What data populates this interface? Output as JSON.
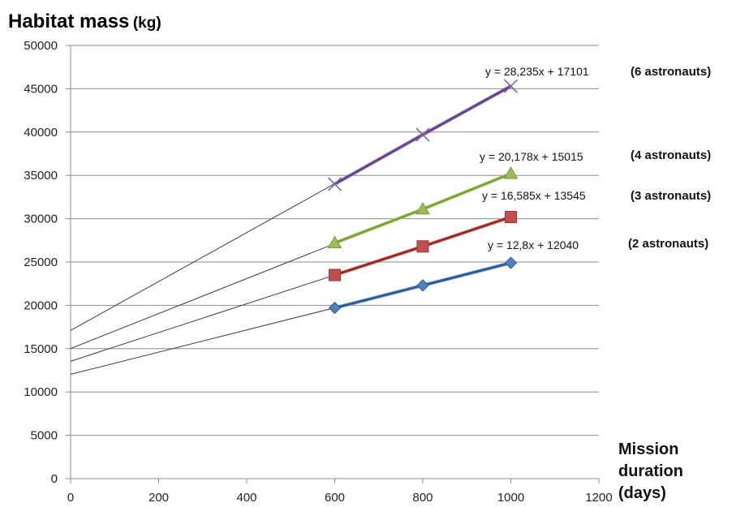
{
  "chart_data": {
    "type": "scatter",
    "title": "",
    "ylabel_main": "Habitat mass",
    "ylabel_unit": "(kg)",
    "xlabel_lines": [
      "Mission",
      "duration",
      "(days)"
    ],
    "xlim": [
      0,
      1200
    ],
    "ylim": [
      0,
      50000
    ],
    "x_ticks": [
      "0",
      "200",
      "400",
      "600",
      "800",
      "1000",
      "1200"
    ],
    "y_ticks": [
      "0",
      "5000",
      "10000",
      "15000",
      "20000",
      "25000",
      "30000",
      "35000",
      "40000",
      "45000",
      "50000"
    ],
    "grid": "horizontal",
    "series": [
      {
        "name": "(6 astronauts)",
        "x": [
          600,
          800,
          1000
        ],
        "values": [
          34000,
          39700,
          45300
        ],
        "marker": "x",
        "color": "#8064a2",
        "line_color": "#5b3a82",
        "trendline": {
          "slope": 28.235,
          "intercept": 17101,
          "equation": "y = 28,235x + 17101"
        }
      },
      {
        "name": "(4 astronauts)",
        "x": [
          600,
          800,
          1000
        ],
        "values": [
          27200,
          31100,
          35200
        ],
        "marker": "triangle",
        "color": "#9bbb59",
        "line_color": "#6f9a2a",
        "trendline": {
          "slope": 20.178,
          "intercept": 15015,
          "equation": "y = 20,178x + 15015"
        }
      },
      {
        "name": "(3 astronauts)",
        "x": [
          600,
          800,
          1000
        ],
        "values": [
          23500,
          26800,
          30200
        ],
        "marker": "square",
        "color": "#c0504d",
        "line_color": "#8b1a1a",
        "trendline": {
          "slope": 16.585,
          "intercept": 13545,
          "equation": "y = 16,585x + 13545"
        }
      },
      {
        "name": "(2 astronauts)",
        "x": [
          600,
          800,
          1000
        ],
        "values": [
          19700,
          22300,
          24900
        ],
        "marker": "diamond",
        "color": "#4f81bd",
        "line_color": "#1f4e8c",
        "trendline": {
          "slope": 12.8,
          "intercept": 12040,
          "equation": "y = 12,8x + 12040"
        }
      }
    ]
  }
}
